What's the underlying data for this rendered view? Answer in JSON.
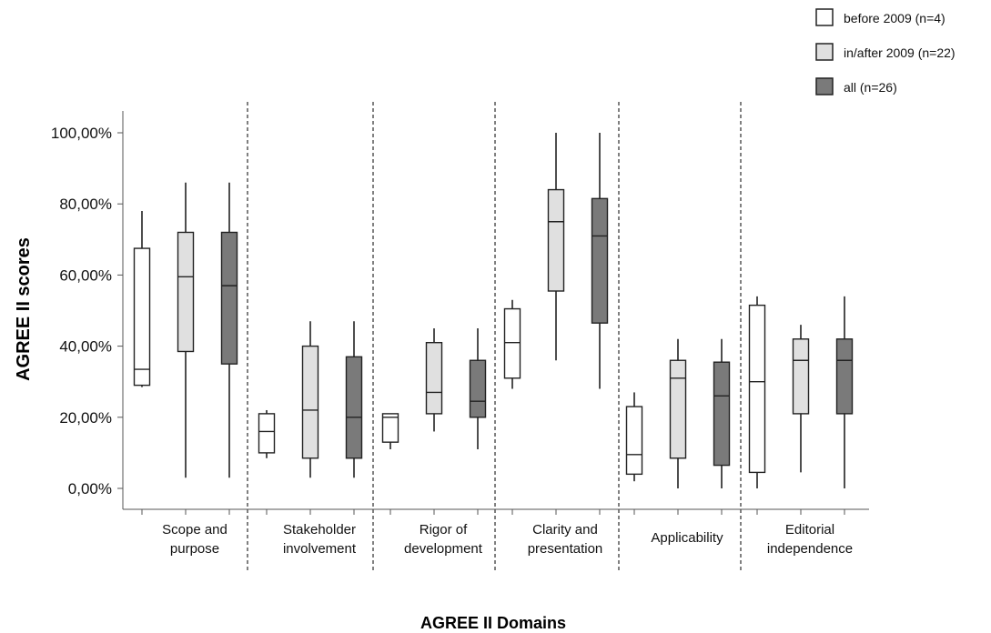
{
  "chart_data": {
    "type": "box",
    "xlabel": "AGREE II Domains",
    "ylabel": "AGREE II scores",
    "ylim": [
      0,
      100
    ],
    "y_ticks": [
      "0,00%",
      "20,00%",
      "40,00%",
      "60,00%",
      "80,00%",
      "100,00%"
    ],
    "y_tick_values": [
      0,
      20,
      40,
      60,
      80,
      100
    ],
    "categories": [
      [
        "Scope and",
        "purpose"
      ],
      [
        "Stakeholder",
        "involvement"
      ],
      [
        "Rigor of",
        "development"
      ],
      [
        "Clarity and",
        "presentation"
      ],
      [
        "Applicability"
      ],
      [
        "Editorial",
        "independence"
      ]
    ],
    "series": [
      {
        "name": "before 2009 (n=4)",
        "color": "#ffffff",
        "boxes": [
          {
            "min": 28.5,
            "q1": 29,
            "median": 33.5,
            "q3": 67.5,
            "max": 78
          },
          {
            "min": 8.5,
            "q1": 10,
            "median": 16,
            "q3": 21,
            "max": 22
          },
          {
            "min": 11,
            "q1": 13,
            "median": 20,
            "q3": 21,
            "max": 21
          },
          {
            "min": 28,
            "q1": 31,
            "median": 41,
            "q3": 50.5,
            "max": 53
          },
          {
            "min": 2,
            "q1": 4,
            "median": 9.5,
            "q3": 23,
            "max": 27
          },
          {
            "min": 0,
            "q1": 4.5,
            "median": 30,
            "q3": 51.5,
            "max": 54
          }
        ]
      },
      {
        "name": "in/after 2009 (n=22)",
        "color": "#e0e0e0",
        "boxes": [
          {
            "min": 3,
            "q1": 38.5,
            "median": 59.5,
            "q3": 72,
            "max": 86
          },
          {
            "min": 3,
            "q1": 8.5,
            "median": 22,
            "q3": 40,
            "max": 47
          },
          {
            "min": 16,
            "q1": 21,
            "median": 27,
            "q3": 41,
            "max": 45
          },
          {
            "min": 36,
            "q1": 55.5,
            "median": 75,
            "q3": 84,
            "max": 100
          },
          {
            "min": 0,
            "q1": 8.5,
            "median": 31,
            "q3": 36,
            "max": 42
          },
          {
            "min": 4.5,
            "q1": 21,
            "median": 36,
            "q3": 42,
            "max": 46
          }
        ]
      },
      {
        "name": "all (n=26)",
        "color": "#7a7a7a",
        "boxes": [
          {
            "min": 3,
            "q1": 35,
            "median": 57,
            "q3": 72,
            "max": 86
          },
          {
            "min": 3,
            "q1": 8.5,
            "median": 20,
            "q3": 37,
            "max": 47
          },
          {
            "min": 11,
            "q1": 20,
            "median": 24.5,
            "q3": 36,
            "max": 45
          },
          {
            "min": 28,
            "q1": 46.5,
            "median": 71,
            "q3": 81.5,
            "max": 100
          },
          {
            "min": 0,
            "q1": 6.5,
            "median": 26,
            "q3": 35.5,
            "max": 42
          },
          {
            "min": 0,
            "q1": 21,
            "median": 36,
            "q3": 42,
            "max": 54
          }
        ]
      }
    ],
    "legend": "top-right"
  }
}
